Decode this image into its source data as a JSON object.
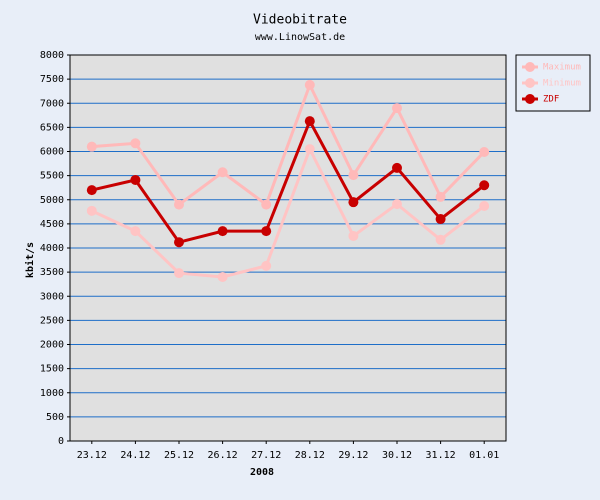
{
  "chart_data": {
    "type": "line",
    "title": "Videobitrate",
    "subtitle": "www.LinowSat.de",
    "x_label": "2008",
    "y_label": "kbit/s",
    "categories": [
      "23.12",
      "24.12",
      "25.12",
      "26.12",
      "27.12",
      "28.12",
      "29.12",
      "30.12",
      "31.12",
      "01.01"
    ],
    "series": [
      {
        "name": "Maximum",
        "color": "#ffb9b9",
        "values": [
          6100,
          6170,
          4900,
          5570,
          4900,
          7380,
          5510,
          6900,
          5060,
          5990
        ]
      },
      {
        "name": "Minimum",
        "color": "#ffc4c4",
        "values": [
          4770,
          4350,
          3480,
          3400,
          3630,
          6050,
          4250,
          4910,
          4170,
          4870
        ]
      },
      {
        "name": "ZDF",
        "color": "#c80000",
        "values": [
          5200,
          5410,
          4120,
          4350,
          4350,
          6630,
          4950,
          5660,
          4600,
          5300
        ]
      }
    ],
    "ylim": [
      0,
      8000
    ],
    "yticks": [
      0,
      500,
      1000,
      1500,
      2000,
      2500,
      3000,
      3500,
      4000,
      4500,
      5000,
      5500,
      6000,
      6500,
      7000,
      7500,
      8000
    ],
    "grid": true,
    "legend": "top-right"
  }
}
